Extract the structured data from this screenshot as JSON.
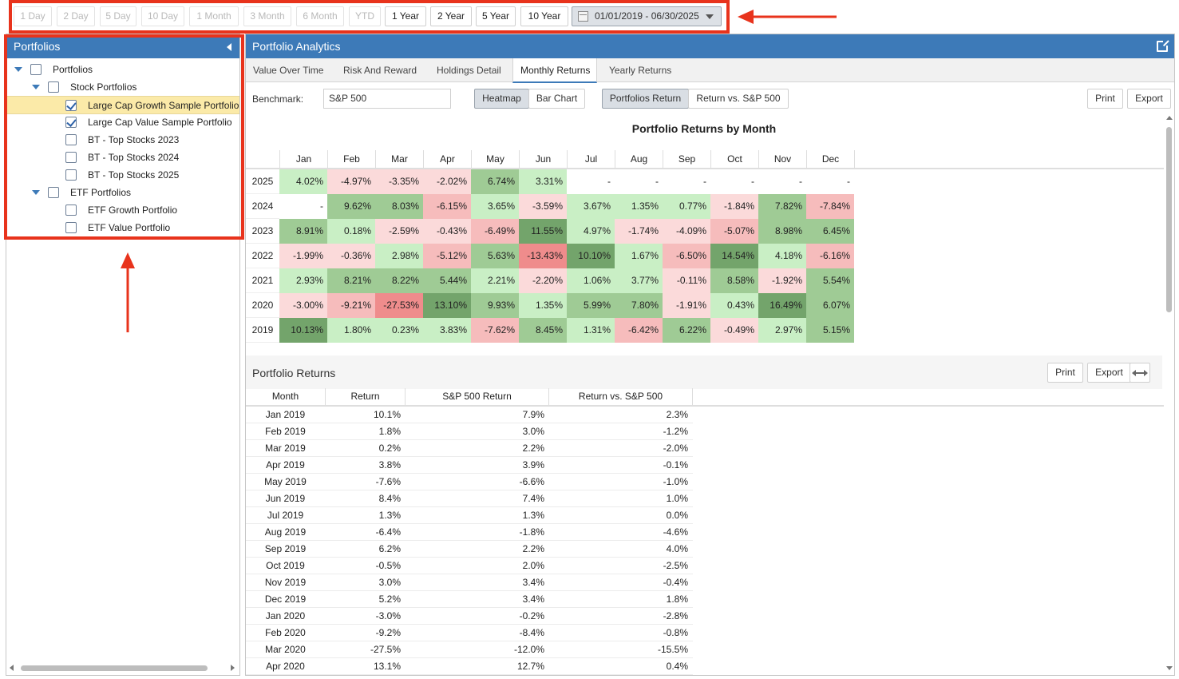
{
  "range_bar": {
    "buttons": [
      {
        "label": "1 Day",
        "enabled": false
      },
      {
        "label": "2 Day",
        "enabled": false
      },
      {
        "label": "5 Day",
        "enabled": false
      },
      {
        "label": "10 Day",
        "enabled": false
      },
      {
        "label": "1 Month",
        "enabled": false
      },
      {
        "label": "3 Month",
        "enabled": false
      },
      {
        "label": "6 Month",
        "enabled": false
      },
      {
        "label": "YTD",
        "enabled": false
      },
      {
        "label": "1 Year",
        "enabled": true
      },
      {
        "label": "2 Year",
        "enabled": true
      },
      {
        "label": "5 Year",
        "enabled": true
      },
      {
        "label": "10 Year",
        "enabled": true
      }
    ],
    "date_range": "01/01/2019 - 06/30/2025",
    "date_icon": "calendar-icon"
  },
  "left_panel": {
    "title": "Portfolios",
    "tree": [
      {
        "label": "Portfolios",
        "level": 0,
        "expandable": true,
        "checked": false,
        "selected": false
      },
      {
        "label": "Stock Portfolios",
        "level": 1,
        "expandable": true,
        "checked": false,
        "selected": false
      },
      {
        "label": "Large Cap Growth Sample Portfolio",
        "level": 2,
        "expandable": false,
        "checked": true,
        "selected": true
      },
      {
        "label": "Large Cap Value Sample Portfolio",
        "level": 2,
        "expandable": false,
        "checked": true,
        "selected": false
      },
      {
        "label": "BT - Top Stocks 2023",
        "level": 2,
        "expandable": false,
        "checked": false,
        "selected": false
      },
      {
        "label": "BT - Top Stocks 2024",
        "level": 2,
        "expandable": false,
        "checked": false,
        "selected": false
      },
      {
        "label": "BT - Top Stocks 2025",
        "level": 2,
        "expandable": false,
        "checked": false,
        "selected": false
      },
      {
        "label": "ETF Portfolios",
        "level": 1,
        "expandable": true,
        "checked": false,
        "selected": false
      },
      {
        "label": "ETF Growth Portfolio",
        "level": 2,
        "expandable": false,
        "checked": false,
        "selected": false
      },
      {
        "label": "ETF Value Portfolio",
        "level": 2,
        "expandable": false,
        "checked": false,
        "selected": false
      }
    ]
  },
  "main": {
    "title": "Portfolio Analytics",
    "tabs": [
      {
        "label": "Value Over Time",
        "active": false
      },
      {
        "label": "Risk And Reward",
        "active": false
      },
      {
        "label": "Holdings Detail",
        "active": false
      },
      {
        "label": "Monthly Returns",
        "active": true
      },
      {
        "label": "Yearly Returns",
        "active": false
      }
    ],
    "benchmark_label": "Benchmark:",
    "benchmark_value": "S&P 500",
    "view_buttons": {
      "heatmap": "Heatmap",
      "bar_chart": "Bar Chart"
    },
    "mode_buttons": {
      "portfolios_return": "Portfolios Return",
      "return_vs": "Return vs. S&P 500"
    },
    "print_label": "Print",
    "export_label": "Export"
  },
  "colors": {
    "header_blue": "#3d7ab8",
    "highlight_red": "#e8331c",
    "selected_row": "#fbeaa8"
  },
  "chart_data": {
    "type": "heatmap",
    "title": "Portfolio Returns by Month",
    "columns": [
      "Jan",
      "Feb",
      "Mar",
      "Apr",
      "May",
      "Jun",
      "Jul",
      "Aug",
      "Sep",
      "Oct",
      "Nov",
      "Dec"
    ],
    "rows": [
      {
        "year": "2025",
        "cells": [
          "4.02%",
          "-4.97%",
          "-3.35%",
          "-2.02%",
          "6.74%",
          "3.31%",
          "-",
          "-",
          "-",
          "-",
          "-",
          "-"
        ]
      },
      {
        "year": "2024",
        "cells": [
          "-",
          "9.62%",
          "8.03%",
          "-6.15%",
          "3.65%",
          "-3.59%",
          "3.67%",
          "1.35%",
          "0.77%",
          "-1.84%",
          "7.82%",
          "-7.84%"
        ]
      },
      {
        "year": "2023",
        "cells": [
          "8.91%",
          "0.18%",
          "-2.59%",
          "-0.43%",
          "-6.49%",
          "11.55%",
          "4.97%",
          "-1.74%",
          "-4.09%",
          "-5.07%",
          "8.98%",
          "6.45%"
        ]
      },
      {
        "year": "2022",
        "cells": [
          "-1.99%",
          "-0.36%",
          "2.98%",
          "-5.12%",
          "5.63%",
          "-13.43%",
          "10.10%",
          "1.67%",
          "-6.50%",
          "14.54%",
          "4.18%",
          "-6.16%"
        ]
      },
      {
        "year": "2021",
        "cells": [
          "2.93%",
          "8.21%",
          "8.22%",
          "5.44%",
          "2.21%",
          "-2.20%",
          "1.06%",
          "3.77%",
          "-0.11%",
          "8.58%",
          "-1.92%",
          "5.54%"
        ]
      },
      {
        "year": "2020",
        "cells": [
          "-3.00%",
          "-9.21%",
          "-27.53%",
          "13.10%",
          "9.93%",
          "1.35%",
          "5.99%",
          "7.80%",
          "-1.91%",
          "0.43%",
          "16.49%",
          "6.07%"
        ]
      },
      {
        "year": "2019",
        "cells": [
          "10.13%",
          "1.80%",
          "0.23%",
          "3.83%",
          "-7.62%",
          "8.45%",
          "1.31%",
          "-6.42%",
          "6.22%",
          "-0.49%",
          "2.97%",
          "5.15%"
        ]
      }
    ]
  },
  "returns_table": {
    "title": "Portfolio Returns",
    "headers": [
      "Month",
      "Return",
      "S&P 500 Return",
      "Return vs. S&P 500"
    ],
    "rows": [
      [
        "Jan 2019",
        "10.1%",
        "7.9%",
        "2.3%"
      ],
      [
        "Feb 2019",
        "1.8%",
        "3.0%",
        "-1.2%"
      ],
      [
        "Mar 2019",
        "0.2%",
        "2.2%",
        "-2.0%"
      ],
      [
        "Apr 2019",
        "3.8%",
        "3.9%",
        "-0.1%"
      ],
      [
        "May 2019",
        "-7.6%",
        "-6.6%",
        "-1.0%"
      ],
      [
        "Jun 2019",
        "8.4%",
        "7.4%",
        "1.0%"
      ],
      [
        "Jul 2019",
        "1.3%",
        "1.3%",
        "0.0%"
      ],
      [
        "Aug 2019",
        "-6.4%",
        "-1.8%",
        "-4.6%"
      ],
      [
        "Sep 2019",
        "6.2%",
        "2.2%",
        "4.0%"
      ],
      [
        "Oct 2019",
        "-0.5%",
        "2.0%",
        "-2.5%"
      ],
      [
        "Nov 2019",
        "3.0%",
        "3.4%",
        "-0.4%"
      ],
      [
        "Dec 2019",
        "5.2%",
        "3.4%",
        "1.8%"
      ],
      [
        "Jan 2020",
        "-3.0%",
        "-0.2%",
        "-2.8%"
      ],
      [
        "Feb 2020",
        "-9.2%",
        "-8.4%",
        "-0.8%"
      ],
      [
        "Mar 2020",
        "-27.5%",
        "-12.0%",
        "-15.5%"
      ],
      [
        "Apr 2020",
        "13.1%",
        "12.7%",
        "0.4%"
      ]
    ]
  }
}
